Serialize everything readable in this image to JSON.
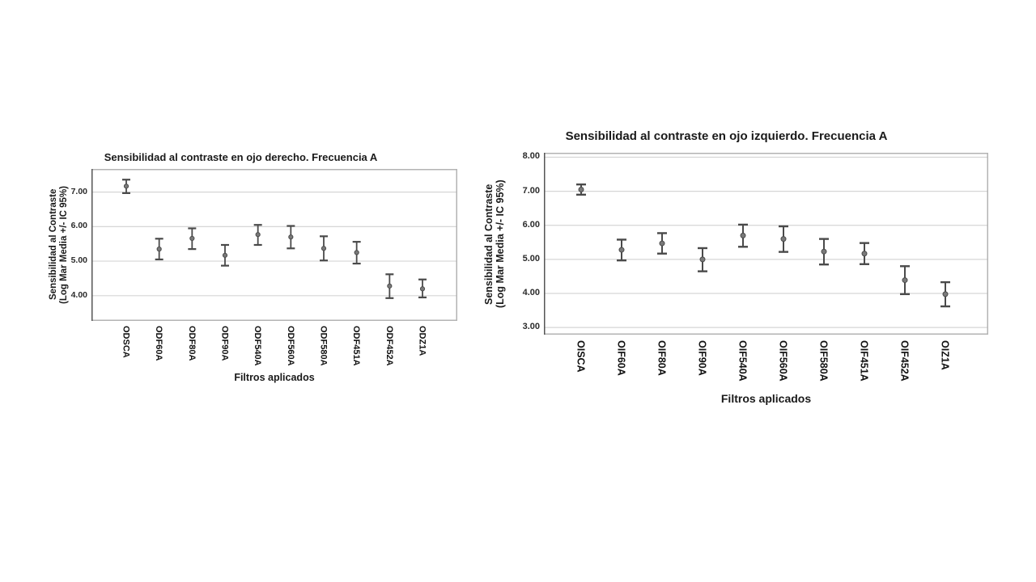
{
  "page": {
    "background": "#ffffff",
    "colors": {
      "errorbar": "#4a4a4a",
      "marker_fill": "#7a7a7a",
      "marker_stroke": "#4a4a4a",
      "grid": "#d6d6d6",
      "frame": "#b3b3b3",
      "axis": "#555555",
      "text": "#1a1a1a"
    }
  },
  "chart_data": [
    {
      "type": "errorbar",
      "title": "Sensibilidad al contraste en ojo derecho. Frecuencia A",
      "ylabel_line1": "Sensibilidad al Contraste",
      "ylabel_line2": "(Log Mar Media +/- IC 95%)",
      "xlabel": "Filtros aplicados",
      "legend": "none",
      "grid": true,
      "ylim": [
        3.27,
        7.67
      ],
      "yticks": [
        {
          "value": 7,
          "label": "7.00"
        },
        {
          "value": 6,
          "label": "6.00"
        },
        {
          "value": 5,
          "label": "5.00"
        },
        {
          "value": 4,
          "label": "4.00"
        }
      ],
      "categories": [
        "ODSCA",
        "ODF60A",
        "ODF80A",
        "ODF90A",
        "ODF540A",
        "ODF560A",
        "ODF580A",
        "ODF451A",
        "ODF452A",
        "ODZ1A"
      ],
      "series": [
        {
          "name": "Media +/- IC 95%",
          "points": [
            {
              "mean": 7.17,
              "lo": 6.97,
              "hi": 7.36
            },
            {
              "mean": 5.35,
              "lo": 5.05,
              "hi": 5.65
            },
            {
              "mean": 5.66,
              "lo": 5.35,
              "hi": 5.95
            },
            {
              "mean": 5.17,
              "lo": 4.87,
              "hi": 5.47
            },
            {
              "mean": 5.77,
              "lo": 5.47,
              "hi": 6.05
            },
            {
              "mean": 5.7,
              "lo": 5.37,
              "hi": 6.02
            },
            {
              "mean": 5.37,
              "lo": 5.02,
              "hi": 5.72
            },
            {
              "mean": 5.25,
              "lo": 4.93,
              "hi": 5.56
            },
            {
              "mean": 4.28,
              "lo": 3.93,
              "hi": 4.62
            },
            {
              "mean": 4.2,
              "lo": 3.95,
              "hi": 4.47
            }
          ]
        }
      ]
    },
    {
      "type": "errorbar",
      "title": "Sensibilidad al contraste en ojo izquierdo. Frecuencia A",
      "ylabel_line1": "Sensibilidad al Contraste",
      "ylabel_line2": "(Log Mar Media +/- IC 95%)",
      "xlabel": "Filtros aplicados",
      "legend": "none",
      "grid": true,
      "ylim": [
        2.79,
        8.13
      ],
      "yticks": [
        {
          "value": 8,
          "label": "8.00"
        },
        {
          "value": 7,
          "label": "7.00"
        },
        {
          "value": 6,
          "label": "6.00"
        },
        {
          "value": 5,
          "label": "5.00"
        },
        {
          "value": 4,
          "label": "4.00"
        },
        {
          "value": 3,
          "label": "3.00"
        }
      ],
      "categories": [
        "OISCA",
        "OIF60A",
        "OIF80A",
        "OIF90A",
        "OIF540A",
        "OIF560A",
        "OIF580A",
        "OIF451A",
        "OIF452A",
        "OIZ1A"
      ],
      "series": [
        {
          "name": "Media +/- IC 95%",
          "points": [
            {
              "mean": 7.05,
              "lo": 6.9,
              "hi": 7.2
            },
            {
              "mean": 5.28,
              "lo": 4.97,
              "hi": 5.58
            },
            {
              "mean": 5.47,
              "lo": 5.17,
              "hi": 5.77
            },
            {
              "mean": 5.0,
              "lo": 4.65,
              "hi": 5.33
            },
            {
              "mean": 5.7,
              "lo": 5.37,
              "hi": 6.02
            },
            {
              "mean": 5.6,
              "lo": 5.22,
              "hi": 5.97
            },
            {
              "mean": 5.23,
              "lo": 4.85,
              "hi": 5.6
            },
            {
              "mean": 5.17,
              "lo": 4.86,
              "hi": 5.48
            },
            {
              "mean": 4.39,
              "lo": 3.98,
              "hi": 4.8
            },
            {
              "mean": 3.98,
              "lo": 3.62,
              "hi": 4.33
            }
          ]
        }
      ]
    }
  ]
}
